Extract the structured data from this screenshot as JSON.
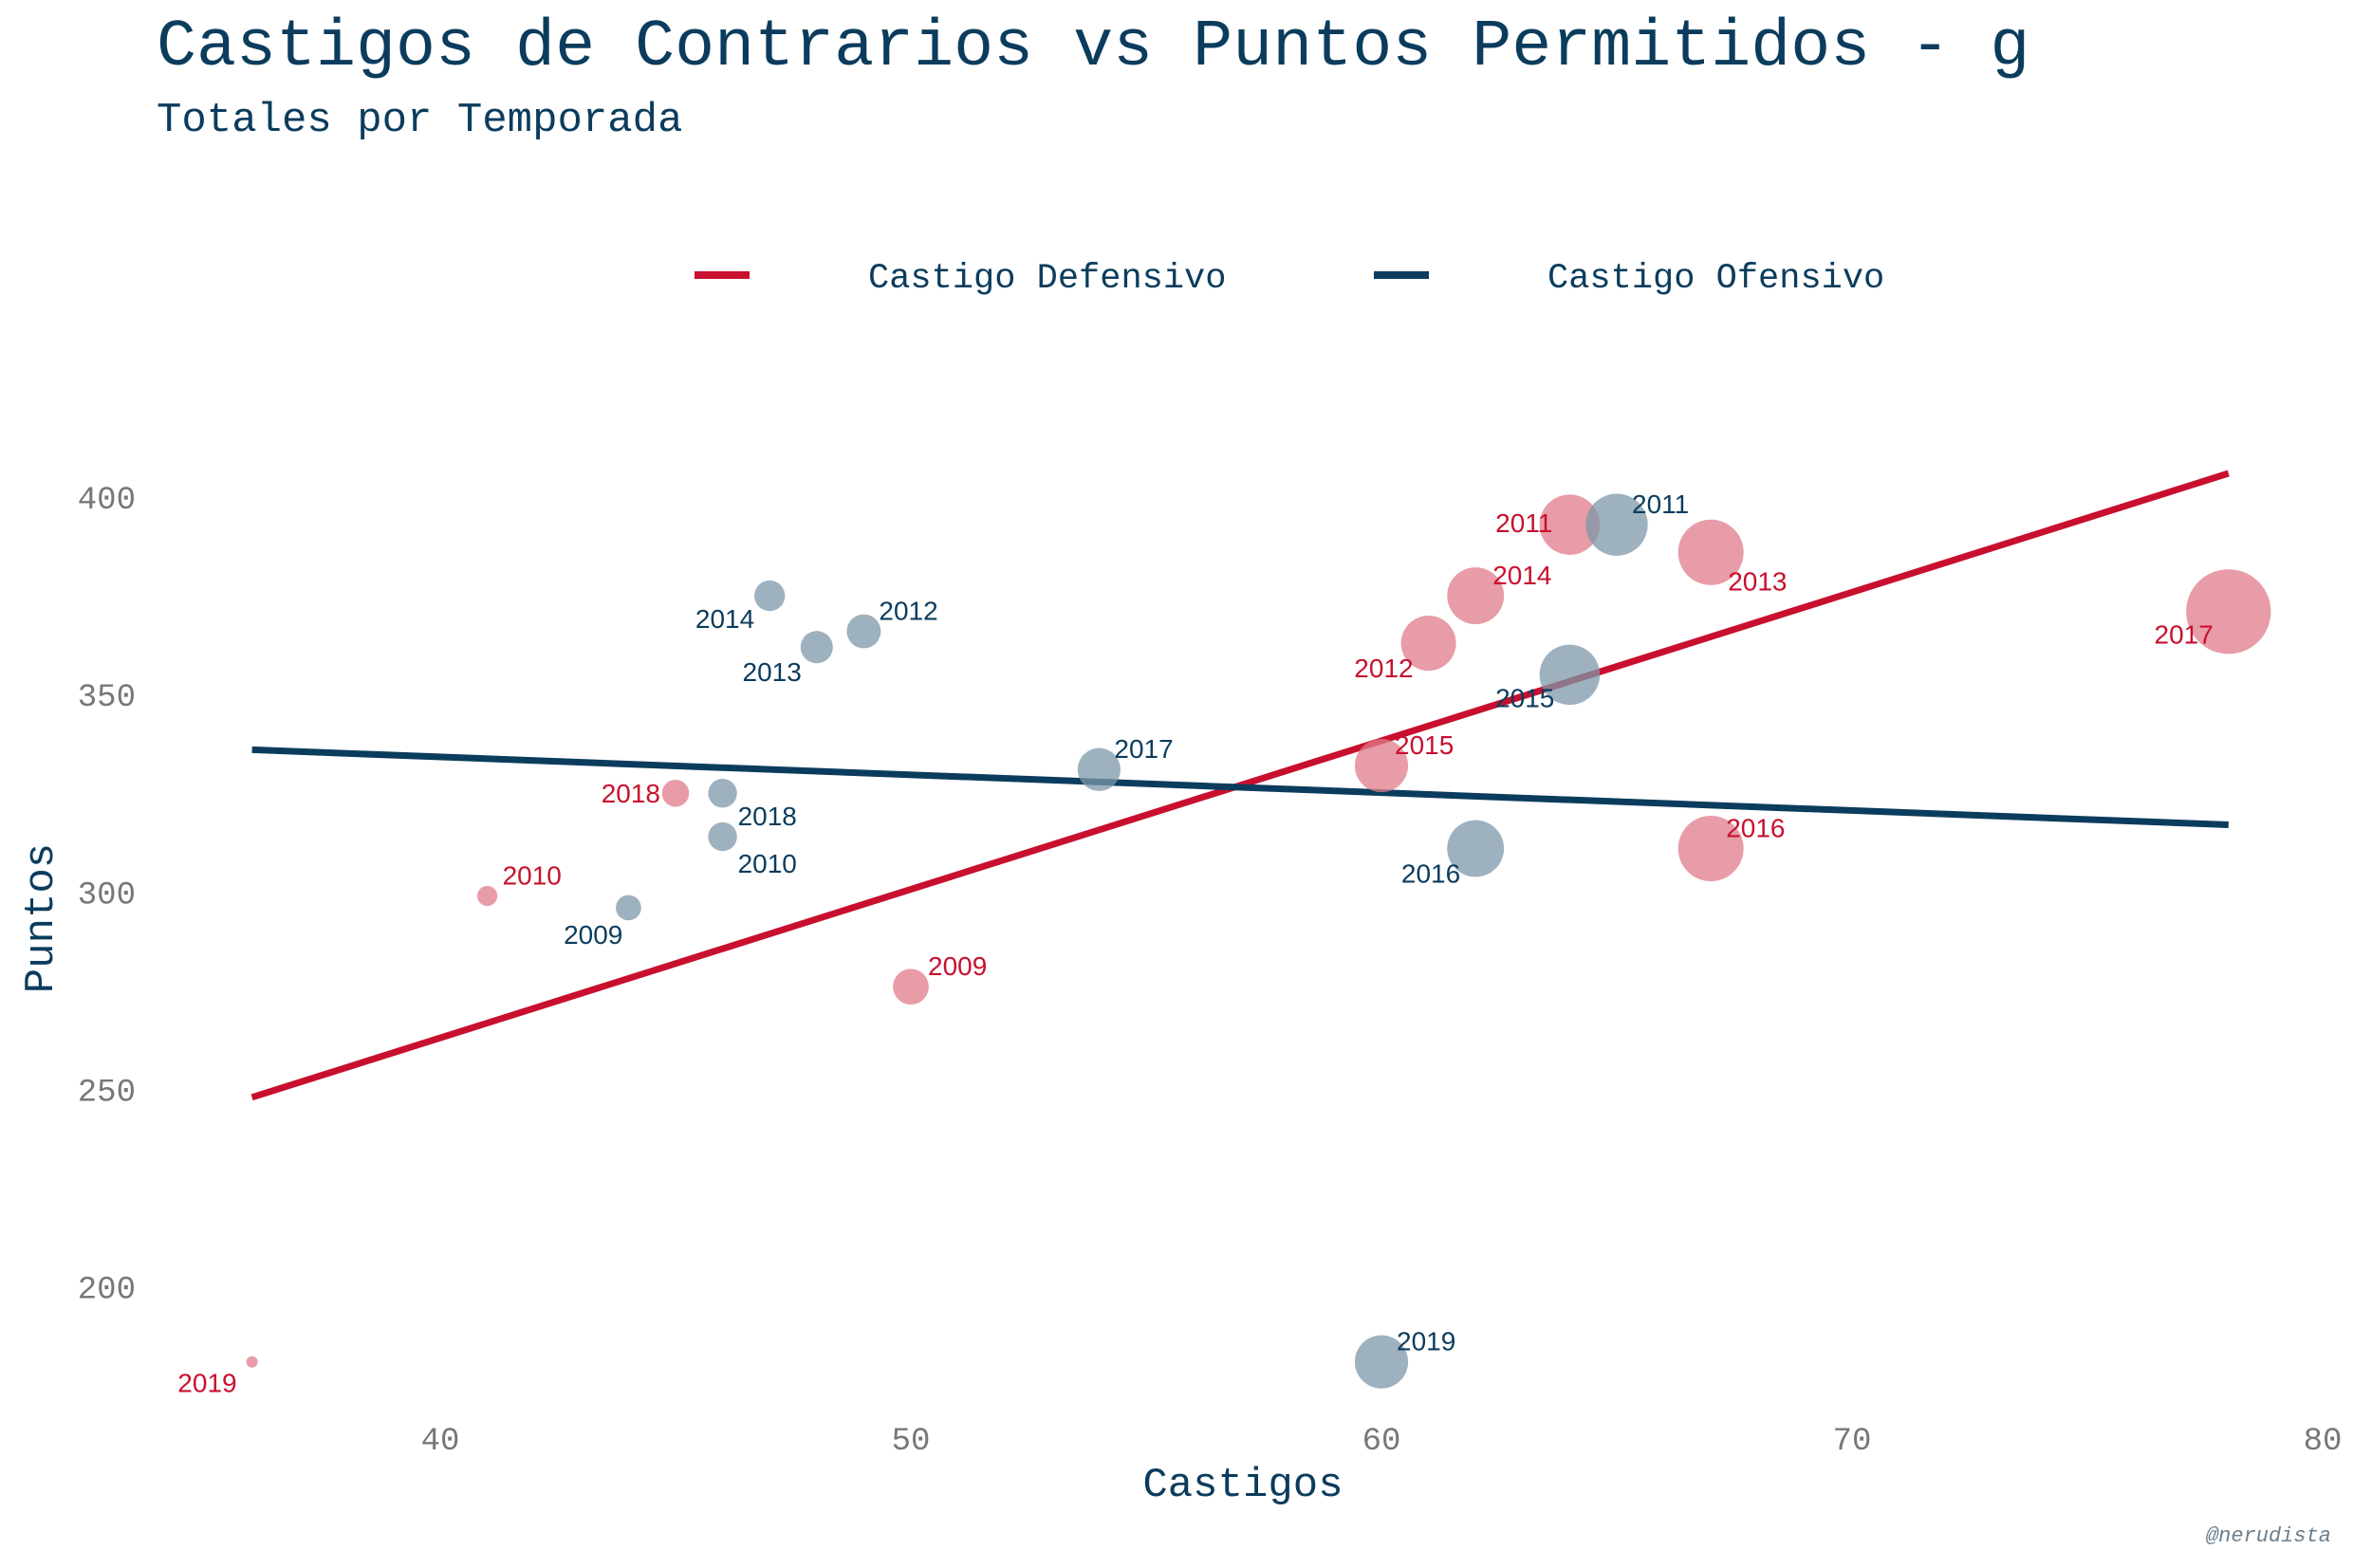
{
  "chart_data": {
    "type": "scatter",
    "title": "Castigos de Contrarios vs Puntos Permitidos - g",
    "subtitle": "Totales por Temporada",
    "xlabel": "Castigos",
    "ylabel": "Puntos",
    "xlim": [
      34,
      80
    ],
    "ylim": [
      175,
      412
    ],
    "x_ticks": [
      40,
      50,
      60,
      70,
      80
    ],
    "y_ticks": [
      200,
      250,
      300,
      350,
      400
    ],
    "grid": false,
    "legend_position": "top",
    "caption": "@nerudista",
    "colors": {
      "defensive": "#c8102e",
      "offensive": "#0b3c5d",
      "text": "#0b3c5d",
      "ticks": "#777777"
    },
    "series": [
      {
        "name": "Castigo Defensivo",
        "color": "#c8102e",
        "point_color": "#e07b8b",
        "points": [
          {
            "label": "2009",
            "x": 50,
            "y": 276
          },
          {
            "label": "2010",
            "x": 41,
            "y": 299
          },
          {
            "label": "2011",
            "x": 64,
            "y": 393
          },
          {
            "label": "2012",
            "x": 61,
            "y": 363
          },
          {
            "label": "2013",
            "x": 67,
            "y": 386
          },
          {
            "label": "2014",
            "x": 62,
            "y": 375
          },
          {
            "label": "2015",
            "x": 60,
            "y": 332
          },
          {
            "label": "2016",
            "x": 67,
            "y": 311
          },
          {
            "label": "2017",
            "x": 78,
            "y": 371
          },
          {
            "label": "2018",
            "x": 45,
            "y": 325
          },
          {
            "label": "2019",
            "x": 36,
            "y": 181
          }
        ],
        "trend": [
          {
            "x": 36,
            "y": 248
          },
          {
            "x": 78,
            "y": 406
          }
        ]
      },
      {
        "name": "Castigo Ofensivo",
        "color": "#0b3c5d",
        "point_color": "#7d97a8",
        "points": [
          {
            "label": "2009",
            "x": 44,
            "y": 296
          },
          {
            "label": "2010",
            "x": 46,
            "y": 314
          },
          {
            "label": "2011",
            "x": 65,
            "y": 393
          },
          {
            "label": "2012",
            "x": 49,
            "y": 366
          },
          {
            "label": "2013",
            "x": 48,
            "y": 362
          },
          {
            "label": "2014",
            "x": 47,
            "y": 375
          },
          {
            "label": "2015",
            "x": 64,
            "y": 355
          },
          {
            "label": "2016",
            "x": 62,
            "y": 311
          },
          {
            "label": "2017",
            "x": 54,
            "y": 331
          },
          {
            "label": "2018",
            "x": 46,
            "y": 325
          },
          {
            "label": "2019",
            "x": 60,
            "y": 181
          }
        ],
        "trend": [
          {
            "x": 36,
            "y": 336
          },
          {
            "x": 78,
            "y": 317
          }
        ]
      }
    ]
  }
}
